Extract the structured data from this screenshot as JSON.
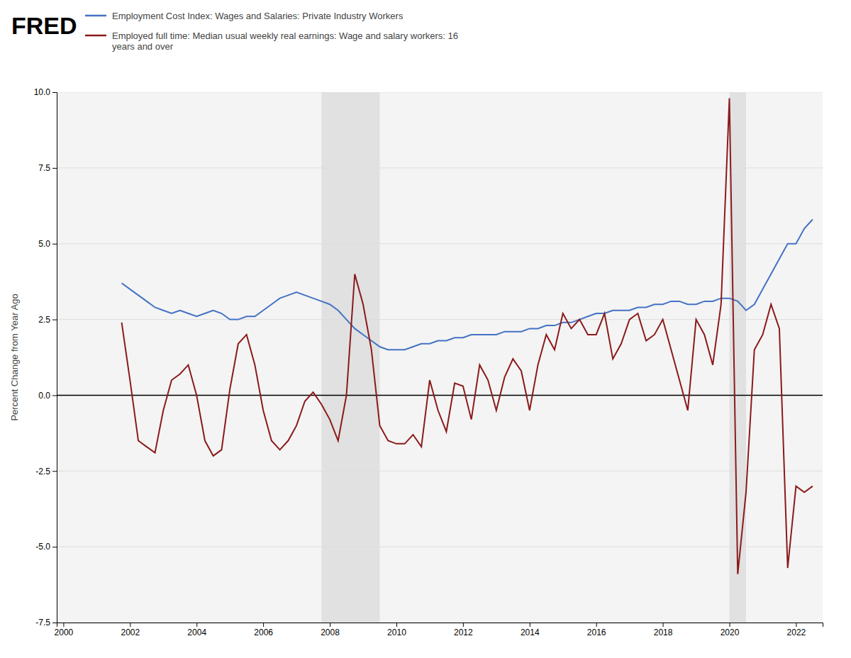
{
  "chart_data": {
    "type": "line",
    "annotations": [
      "FRED"
    ],
    "y_label": "Percent Change from Year Ago",
    "xlim": [
      1999.8,
      2022.8
    ],
    "xticks": [
      2000,
      2002,
      2004,
      2006,
      2008,
      2010,
      2012,
      2014,
      2016,
      2018,
      2020,
      2022
    ],
    "ylim": [
      -7.5,
      10.0
    ],
    "yticks": [
      -7.5,
      {
        "value": -5.0,
        "label": "-5.0"
      },
      -2.5,
      {
        "value": 0.0,
        "label": "0.0"
      },
      2.5,
      {
        "value": 5.0,
        "label": "5.0"
      },
      7.5,
      {
        "value": 10.0,
        "label": "10.0"
      }
    ],
    "grid": true,
    "reference_line": 0,
    "recessions": [
      {
        "start": 2007.75,
        "end": 2009.5
      },
      {
        "start": 2020.0,
        "end": 2020.5
      }
    ],
    "x": [
      2001.75,
      2002.0,
      2002.25,
      2002.5,
      2002.75,
      2003.0,
      2003.25,
      2003.5,
      2003.75,
      2004.0,
      2004.25,
      2004.5,
      2004.75,
      2005.0,
      2005.25,
      2005.5,
      2005.75,
      2006.0,
      2006.25,
      2006.5,
      2006.75,
      2007.0,
      2007.25,
      2007.5,
      2007.75,
      2008.0,
      2008.25,
      2008.5,
      2008.75,
      2009.0,
      2009.25,
      2009.5,
      2009.75,
      2010.0,
      2010.25,
      2010.5,
      2010.75,
      2011.0,
      2011.25,
      2011.5,
      2011.75,
      2012.0,
      2012.25,
      2012.5,
      2012.75,
      2013.0,
      2013.25,
      2013.5,
      2013.75,
      2014.0,
      2014.25,
      2014.5,
      2014.75,
      2015.0,
      2015.25,
      2015.5,
      2015.75,
      2016.0,
      2016.25,
      2016.5,
      2016.75,
      2017.0,
      2017.25,
      2017.5,
      2017.75,
      2018.0,
      2018.25,
      2018.5,
      2018.75,
      2019.0,
      2019.25,
      2019.5,
      2019.75,
      2020.0,
      2020.25,
      2020.5,
      2020.75,
      2021.0,
      2021.25,
      2021.5,
      2021.75,
      2022.0,
      2022.25,
      2022.5
    ],
    "series": [
      {
        "name": "Employment Cost Index: Wages and Salaries: Private Industry Workers",
        "color": "#4472c4",
        "values": [
          3.7,
          3.5,
          3.3,
          3.1,
          2.9,
          2.8,
          2.7,
          2.8,
          2.7,
          2.6,
          2.7,
          2.8,
          2.7,
          2.5,
          2.5,
          2.6,
          2.6,
          2.8,
          3.0,
          3.2,
          3.3,
          3.4,
          3.3,
          3.2,
          3.1,
          3.0,
          2.8,
          2.5,
          2.2,
          2.0,
          1.8,
          1.6,
          1.5,
          1.5,
          1.5,
          1.6,
          1.7,
          1.7,
          1.8,
          1.8,
          1.9,
          1.9,
          2.0,
          2.0,
          2.0,
          2.0,
          2.1,
          2.1,
          2.1,
          2.2,
          2.2,
          2.3,
          2.3,
          2.4,
          2.4,
          2.5,
          2.6,
          2.7,
          2.7,
          2.8,
          2.8,
          2.8,
          2.9,
          2.9,
          3.0,
          3.0,
          3.1,
          3.1,
          3.0,
          3.0,
          3.1,
          3.1,
          3.2,
          3.2,
          3.1,
          2.8,
          3.0,
          3.5,
          4.0,
          4.5,
          5.0,
          5.0,
          5.5,
          5.8
        ]
      },
      {
        "name": "Employed full time: Median usual weekly real earnings: Wage and salary workers: 16\nyears and over",
        "color": "#8b1a1a",
        "values": [
          2.4,
          0.5,
          -1.5,
          -1.7,
          -1.9,
          -0.5,
          0.5,
          0.7,
          1.0,
          0.0,
          -1.5,
          -2.0,
          -1.8,
          0.2,
          1.7,
          2.0,
          1.0,
          -0.5,
          -1.5,
          -1.8,
          -1.5,
          -1.0,
          -0.2,
          0.1,
          -0.3,
          -0.8,
          -1.5,
          -0.0,
          4.0,
          3.0,
          1.5,
          -1.0,
          -1.5,
          -1.6,
          -1.6,
          -1.3,
          -1.7,
          0.5,
          -0.5,
          -1.2,
          0.4,
          0.3,
          -0.8,
          1.0,
          0.5,
          -0.5,
          0.6,
          1.2,
          0.8,
          -0.5,
          1.0,
          2.0,
          1.5,
          2.7,
          2.2,
          2.5,
          2.0,
          2.0,
          2.7,
          1.2,
          1.7,
          2.5,
          2.7,
          1.8,
          2.0,
          2.5,
          1.5,
          0.5,
          -0.5,
          2.5,
          2.0,
          1.0,
          3.0,
          9.8,
          -5.9,
          -3.2,
          1.5,
          2.0,
          3.0,
          2.2,
          -5.7,
          -3.0,
          -3.2,
          -3.0
        ]
      }
    ]
  }
}
